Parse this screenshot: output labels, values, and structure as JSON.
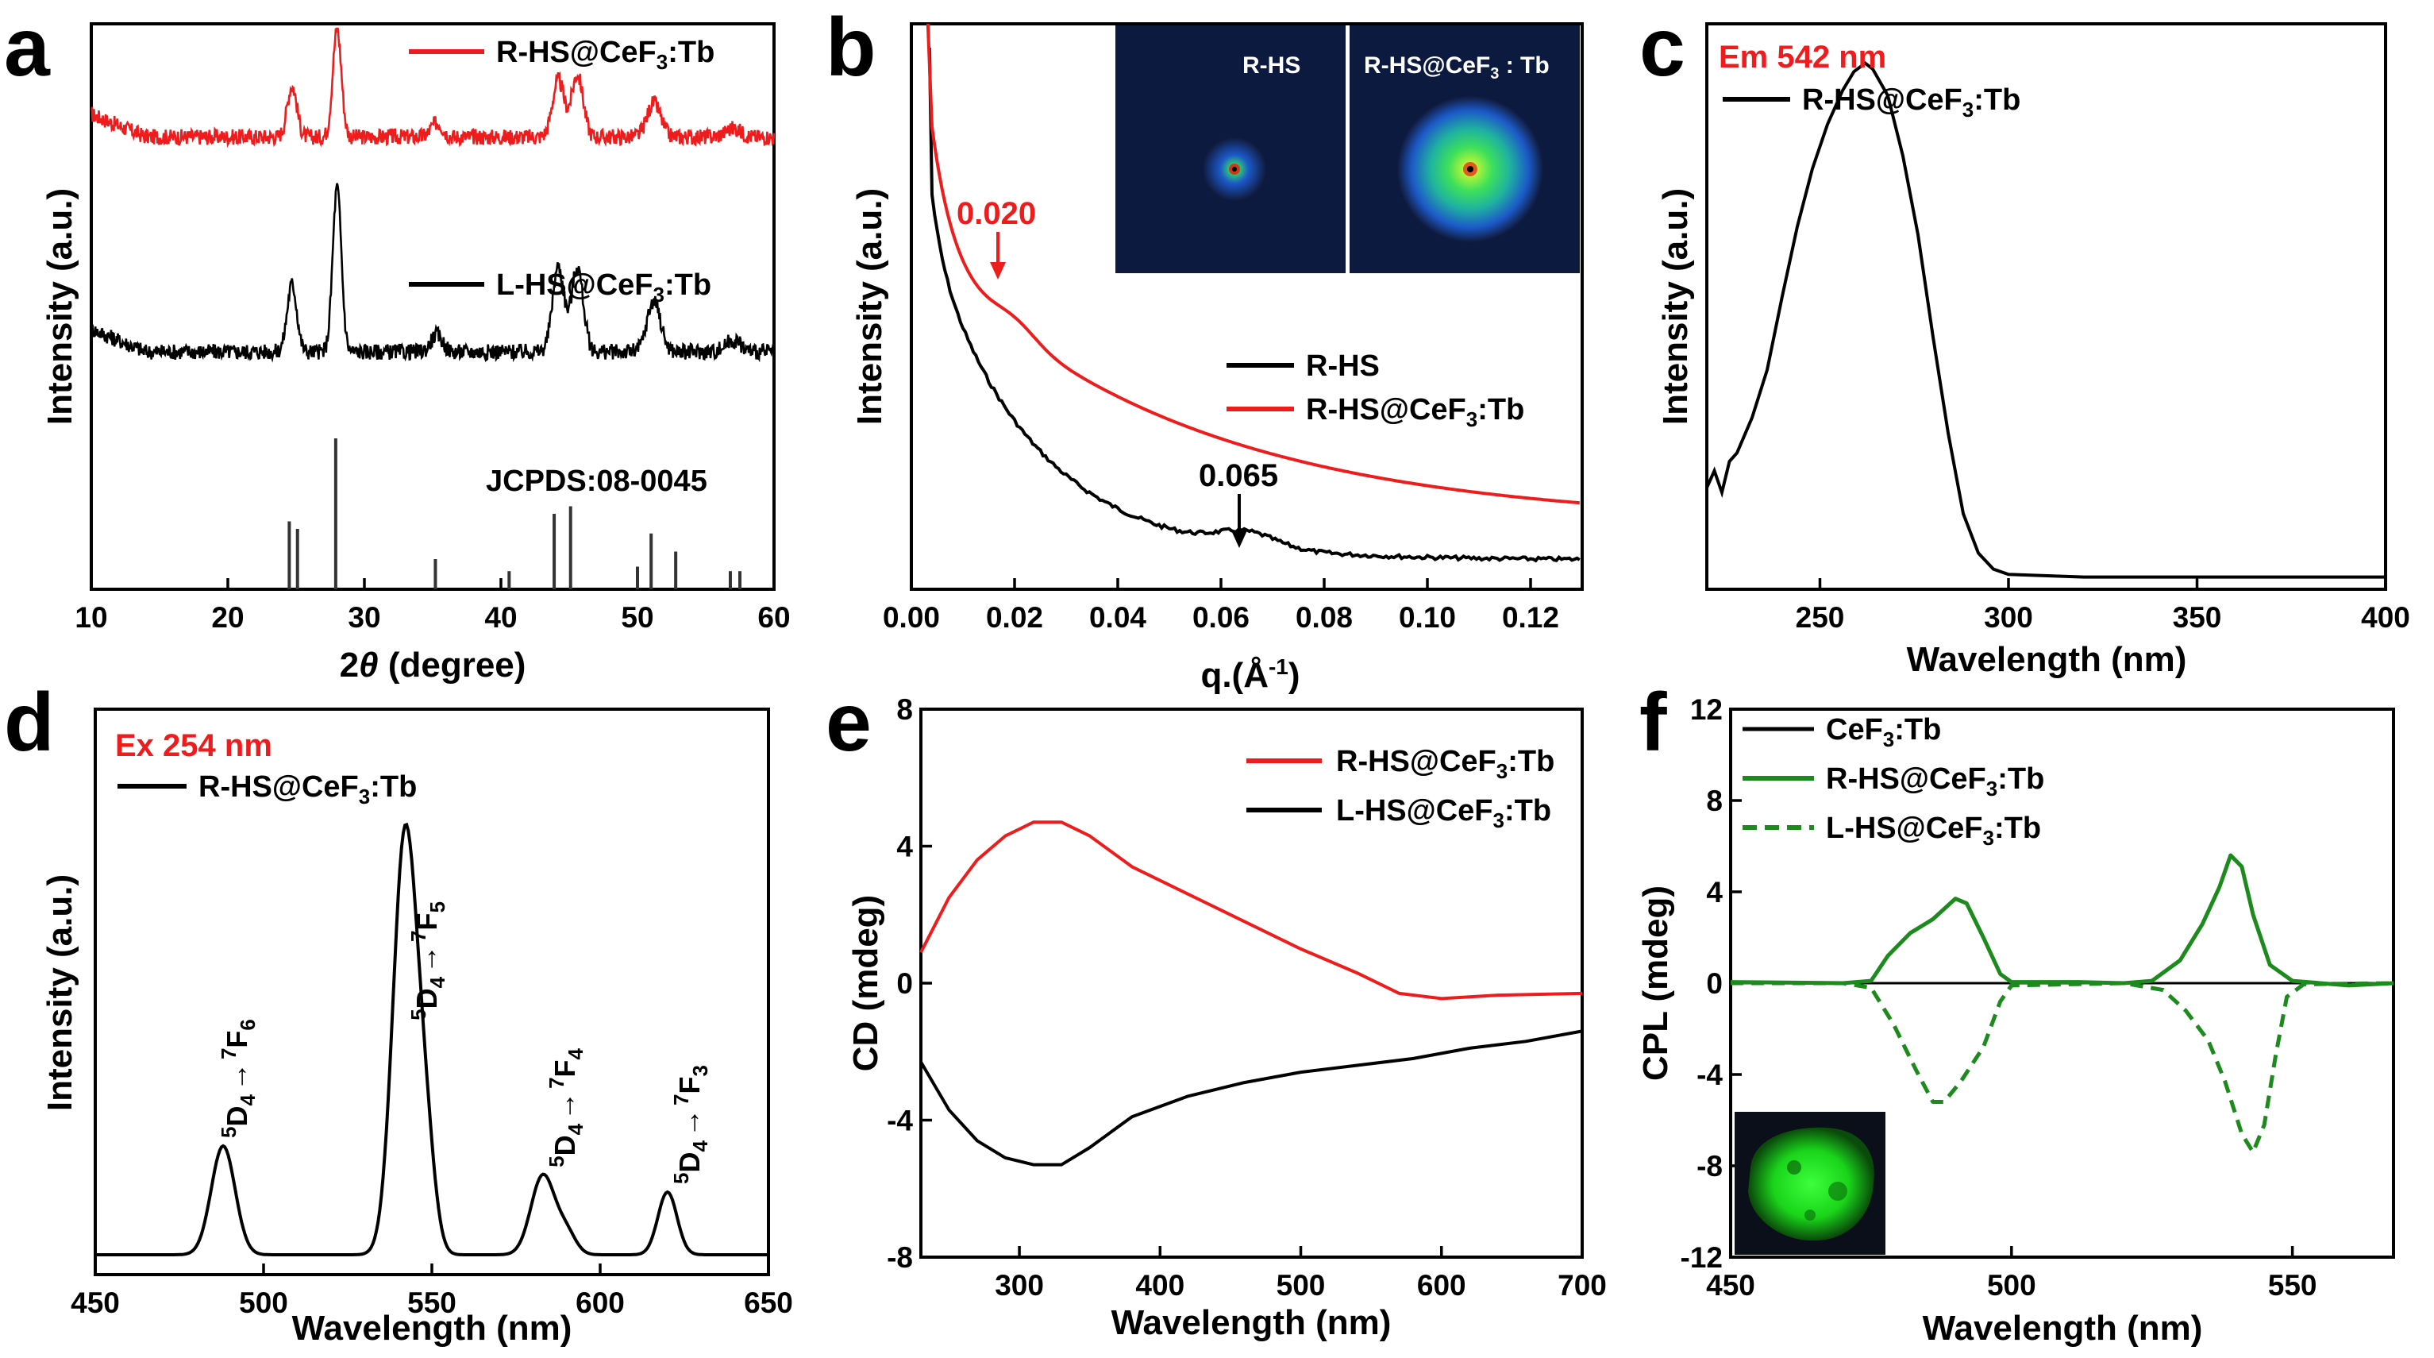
{
  "colors": {
    "red": "#ee1c1c",
    "black": "#000000",
    "green": "#1c8a1c",
    "ref_bar": "#333333"
  },
  "chart_data": [
    {
      "id": "a",
      "type": "line",
      "panel": "a",
      "xlabel_main": "2",
      "xlabel_theta": "θ",
      "xlabel_rest": " (degree)",
      "ylabel": "Intensity (a.u.)",
      "xlim": [
        10,
        60
      ],
      "xticks": [
        "10",
        "20",
        "30",
        "40",
        "50",
        "60"
      ],
      "series": [
        {
          "name": "R-HS@CeF3:Tb",
          "label_main": "R-HS@CeF",
          "label_sub": "3",
          "label_tail": ":Tb",
          "color": "red",
          "baseline": 0.8,
          "peaks": [
            [
              24.7,
              0.09,
              0.5
            ],
            [
              28.0,
              0.19,
              0.45
            ],
            [
              35.3,
              0.025,
              0.6
            ],
            [
              44.2,
              0.1,
              0.6
            ],
            [
              45.6,
              0.11,
              0.6
            ],
            [
              51.2,
              0.06,
              0.7
            ],
            [
              57,
              0.015,
              0.8
            ]
          ]
        },
        {
          "name": "L-HS@CeF3:Tb",
          "label_main": "L-HS@CeF",
          "label_sub": "3",
          "label_tail": ":Tb",
          "color": "black",
          "baseline": 0.42,
          "peaks": [
            [
              24.7,
              0.12,
              0.5
            ],
            [
              28.0,
              0.29,
              0.45
            ],
            [
              35.3,
              0.03,
              0.6
            ],
            [
              44.2,
              0.15,
              0.6
            ],
            [
              45.6,
              0.15,
              0.6
            ],
            [
              51.2,
              0.09,
              0.7
            ],
            [
              57,
              0.02,
              0.8
            ]
          ]
        }
      ],
      "reference": {
        "label": "JCPDS:08-0045",
        "positions": [
          24.5,
          25.1,
          27.9,
          35.2,
          40.6,
          43.9,
          45.1,
          50.0,
          51.0,
          52.8,
          56.8,
          57.5
        ],
        "heights": [
          0.45,
          0.4,
          1.0,
          0.2,
          0.12,
          0.5,
          0.55,
          0.15,
          0.37,
          0.25,
          0.12,
          0.12
        ]
      }
    },
    {
      "id": "b",
      "type": "line",
      "panel": "b",
      "xlabel": "q.(Å",
      "xlabel_sup": "-1",
      "xlabel_tail": ")",
      "ylabel": "Intensity (a.u.)",
      "xlim": [
        0,
        0.13
      ],
      "xticks": [
        "0.00",
        "0.02",
        "0.04",
        "0.06",
        "0.08",
        "0.10",
        "0.12"
      ],
      "series": [
        {
          "name": "R-HS",
          "color": "black"
        },
        {
          "name": "R-HS@CeF3:Tb",
          "label_main": "R-HS@CeF",
          "label_sub": "3",
          "label_tail": ":Tb",
          "color": "red"
        }
      ],
      "annotations": [
        {
          "text": "0.020",
          "x": 0.02,
          "color": "red"
        },
        {
          "text": "0.065",
          "x": 0.065,
          "color": "black"
        }
      ],
      "inset": {
        "left_label": "R-HS",
        "right_label": "R-HS@CeF",
        "right_sub": "3",
        "right_tail": " : Tb"
      }
    },
    {
      "id": "c",
      "type": "line",
      "panel": "c",
      "title": "Em 542 nm",
      "xlabel": "Wavelength (nm)",
      "ylabel": "Intensity (a.u.)",
      "xlim": [
        220,
        400
      ],
      "xticks": [
        "250",
        "300",
        "350",
        "400"
      ],
      "series": [
        {
          "name": "R-HS@CeF3:Tb",
          "label_main": "R-HS@CeF",
          "label_sub": "3",
          "label_tail": ":Tb",
          "color": "black",
          "points": [
            [
              220,
              0.17
            ],
            [
              222,
              0.2
            ],
            [
              224,
              0.17
            ],
            [
              226,
              0.22
            ],
            [
              228,
              0.24
            ],
            [
              232,
              0.3
            ],
            [
              236,
              0.4
            ],
            [
              240,
              0.53
            ],
            [
              244,
              0.66
            ],
            [
              248,
              0.77
            ],
            [
              252,
              0.86
            ],
            [
              256,
              0.92
            ],
            [
              259,
              0.95
            ],
            [
              262,
              0.97
            ],
            [
              264,
              0.96
            ],
            [
              268,
              0.9
            ],
            [
              272,
              0.8
            ],
            [
              276,
              0.65
            ],
            [
              280,
              0.46
            ],
            [
              284,
              0.27
            ],
            [
              288,
              0.12
            ],
            [
              292,
              0.05
            ],
            [
              296,
              0.02
            ],
            [
              300,
              0.01
            ],
            [
              320,
              0.005
            ],
            [
              400,
              0.005
            ]
          ]
        }
      ]
    },
    {
      "id": "d",
      "type": "line",
      "panel": "d",
      "title": "Ex 254 nm",
      "xlabel": "Wavelength (nm)",
      "ylabel": "Intensity (a.u.)",
      "xlim": [
        450,
        650
      ],
      "xticks": [
        "450",
        "500",
        "550",
        "600",
        "650"
      ],
      "series": [
        {
          "name": "R-HS@CeF3:Tb",
          "label_main": "R-HS@CeF",
          "label_sub": "3",
          "label_tail": ":Tb",
          "color": "black",
          "peaks": [
            [
              488,
              0.26,
              5
            ],
            [
              542,
              1.0,
              5
            ],
            [
              548,
              0.25,
              4
            ],
            [
              583,
              0.19,
              5
            ],
            [
              590,
              0.05,
              4
            ],
            [
              620,
              0.15,
              4
            ]
          ]
        }
      ],
      "transitions": [
        {
          "peak_x": 488,
          "lower": "5",
          "lower_term": "D",
          "lower_sub": "4",
          "upper": "7",
          "upper_term": "F",
          "upper_sub": "6"
        },
        {
          "peak_x": 542,
          "lower": "5",
          "lower_term": "D",
          "lower_sub": "4",
          "upper": "7",
          "upper_term": "F",
          "upper_sub": "5"
        },
        {
          "peak_x": 583,
          "lower": "5",
          "lower_term": "D",
          "lower_sub": "4",
          "upper": "7",
          "upper_term": "F",
          "upper_sub": "4"
        },
        {
          "peak_x": 620,
          "lower": "5",
          "lower_term": "D",
          "lower_sub": "4",
          "upper": "7",
          "upper_term": "F",
          "upper_sub": "3"
        }
      ]
    },
    {
      "id": "e",
      "type": "line",
      "panel": "e",
      "xlabel": "Wavelength (nm)",
      "ylabel": "CD (mdeg)",
      "xlim": [
        230,
        700
      ],
      "ylim": [
        -8,
        8
      ],
      "xticks": [
        "300",
        "400",
        "500",
        "600",
        "700"
      ],
      "yticks": [
        "-8",
        "-4",
        "0",
        "4",
        "8"
      ],
      "series": [
        {
          "name": "R-HS@CeF3:Tb",
          "label_main": "R-HS@CeF",
          "label_sub": "3",
          "label_tail": ":Tb",
          "color": "red",
          "points": [
            [
              230,
              0.9
            ],
            [
              250,
              2.5
            ],
            [
              270,
              3.6
            ],
            [
              290,
              4.3
            ],
            [
              310,
              4.7
            ],
            [
              330,
              4.7
            ],
            [
              350,
              4.3
            ],
            [
              380,
              3.4
            ],
            [
              420,
              2.6
            ],
            [
              460,
              1.8
            ],
            [
              500,
              1.0
            ],
            [
              540,
              0.3
            ],
            [
              570,
              -0.3
            ],
            [
              600,
              -0.45
            ],
            [
              640,
              -0.35
            ],
            [
              700,
              -0.3
            ]
          ]
        },
        {
          "name": "L-HS@CeF3:Tb",
          "label_main": "L-HS@CeF",
          "label_sub": "3",
          "label_tail": ":Tb",
          "color": "black",
          "points": [
            [
              230,
              -2.3
            ],
            [
              250,
              -3.7
            ],
            [
              270,
              -4.6
            ],
            [
              290,
              -5.1
            ],
            [
              310,
              -5.3
            ],
            [
              330,
              -5.3
            ],
            [
              350,
              -4.8
            ],
            [
              380,
              -3.9
            ],
            [
              420,
              -3.3
            ],
            [
              460,
              -2.9
            ],
            [
              500,
              -2.6
            ],
            [
              540,
              -2.4
            ],
            [
              580,
              -2.2
            ],
            [
              620,
              -1.9
            ],
            [
              660,
              -1.7
            ],
            [
              700,
              -1.4
            ]
          ]
        }
      ]
    },
    {
      "id": "f",
      "type": "line",
      "panel": "f",
      "xlabel": "Wavelength (nm)",
      "ylabel": "CPL (mdeg)",
      "xlim": [
        450,
        568
      ],
      "ylim": [
        -12,
        12
      ],
      "xticks": [
        "450",
        "500",
        "550"
      ],
      "yticks": [
        "-12",
        "-8",
        "-4",
        "0",
        "4",
        "8",
        "12"
      ],
      "series": [
        {
          "name": "CeF3:Tb",
          "label_main": "CeF",
          "label_sub": "3",
          "label_tail": ":Tb",
          "color": "black",
          "style": "solid",
          "points": [
            [
              450,
              0
            ],
            [
              568,
              0
            ]
          ]
        },
        {
          "name": "R-HS@CeF3:Tb",
          "label_main": "R-HS@CeF",
          "label_sub": "3",
          "label_tail": ":Tb",
          "color": "green",
          "style": "solid",
          "points": [
            [
              450,
              0.05
            ],
            [
              470,
              0
            ],
            [
              475,
              0.1
            ],
            [
              478,
              1.2
            ],
            [
              482,
              2.2
            ],
            [
              486,
              2.8
            ],
            [
              490,
              3.7
            ],
            [
              492,
              3.5
            ],
            [
              495,
              2.0
            ],
            [
              498,
              0.4
            ],
            [
              500,
              0.05
            ],
            [
              512,
              0.05
            ],
            [
              520,
              0
            ],
            [
              525,
              0.1
            ],
            [
              530,
              1.0
            ],
            [
              534,
              2.6
            ],
            [
              537,
              4.2
            ],
            [
              539,
              5.6
            ],
            [
              541,
              5.1
            ],
            [
              543,
              3.0
            ],
            [
              546,
              0.8
            ],
            [
              550,
              0.1
            ],
            [
              560,
              -0.1
            ],
            [
              568,
              0.0
            ]
          ]
        },
        {
          "name": "L-HS@CeF3:Tb",
          "label_main": "L-HS@CeF",
          "label_sub": "3",
          "label_tail": ":Tb",
          "color": "green",
          "style": "dashed",
          "points": [
            [
              450,
              0
            ],
            [
              470,
              0
            ],
            [
              475,
              -0.2
            ],
            [
              479,
              -1.8
            ],
            [
              483,
              -3.8
            ],
            [
              486,
              -5.2
            ],
            [
              488,
              -5.2
            ],
            [
              491,
              -4.3
            ],
            [
              495,
              -2.8
            ],
            [
              498,
              -0.8
            ],
            [
              500,
              -0.1
            ],
            [
              520,
              0
            ],
            [
              527,
              -0.3
            ],
            [
              531,
              -1.2
            ],
            [
              535,
              -2.5
            ],
            [
              538,
              -4.3
            ],
            [
              541,
              -6.6
            ],
            [
              543,
              -7.4
            ],
            [
              545,
              -6.2
            ],
            [
              547,
              -3.2
            ],
            [
              549,
              -0.6
            ],
            [
              552,
              -0.05
            ],
            [
              568,
              0
            ]
          ]
        }
      ]
    }
  ],
  "panel_letters": [
    "a",
    "b",
    "c",
    "d",
    "e",
    "f"
  ]
}
